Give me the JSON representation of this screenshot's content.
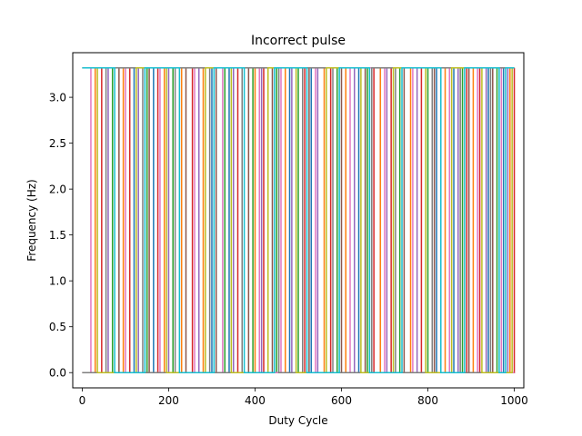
{
  "chart_data": {
    "type": "line",
    "title": "Incorrect pulse",
    "xlabel": "Duty Cycle",
    "ylabel": "Frequency (Hz)",
    "xlim": [
      -22,
      1022
    ],
    "ylim": [
      -0.166,
      3.486
    ],
    "xticks": [
      0,
      200,
      400,
      600,
      800,
      1000
    ],
    "xtick_labels": [
      "0",
      "200",
      "400",
      "600",
      "800",
      "1000"
    ],
    "yticks": [
      0.0,
      0.5,
      1.0,
      1.5,
      2.0,
      2.5,
      3.0
    ],
    "ytick_labels": [
      "0.0",
      "0.5",
      "1.0",
      "1.5",
      "2.0",
      "2.5",
      "3.0"
    ],
    "grid": false,
    "legend": "none",
    "low_level": 0.0,
    "high_level": 3.32,
    "series": [
      {
        "color": "#1f77b4",
        "transitions": [
          [
            0,
            1
          ],
          [
            120,
            0
          ],
          [
            165,
            1
          ],
          [
            300,
            0
          ],
          [
            340,
            1
          ],
          [
            480,
            0
          ],
          [
            530,
            1
          ],
          [
            640,
            0
          ],
          [
            690,
            1
          ],
          [
            820,
            0
          ],
          [
            860,
            1
          ],
          [
            940,
            0
          ],
          [
            975,
            1
          ]
        ]
      },
      {
        "color": "#ff7f0e",
        "transitions": [
          [
            0,
            0
          ],
          [
            30,
            1
          ],
          [
            95,
            0
          ],
          [
            190,
            1
          ],
          [
            230,
            0
          ],
          [
            280,
            1
          ],
          [
            400,
            0
          ],
          [
            470,
            1
          ],
          [
            560,
            0
          ],
          [
            610,
            1
          ],
          [
            690,
            0
          ],
          [
            760,
            1
          ],
          [
            840,
            0
          ],
          [
            905,
            1
          ],
          [
            990,
            0
          ]
        ]
      },
      {
        "color": "#2ca02c",
        "transitions": [
          [
            0,
            0
          ],
          [
            70,
            1
          ],
          [
            150,
            0
          ],
          [
            210,
            1
          ],
          [
            330,
            0
          ],
          [
            395,
            1
          ],
          [
            450,
            0
          ],
          [
            500,
            1
          ],
          [
            590,
            0
          ],
          [
            660,
            1
          ],
          [
            735,
            0
          ],
          [
            800,
            1
          ],
          [
            880,
            0
          ],
          [
            960,
            1
          ]
        ]
      },
      {
        "color": "#d62728",
        "transitions": [
          [
            0,
            1
          ],
          [
            45,
            0
          ],
          [
            110,
            1
          ],
          [
            175,
            0
          ],
          [
            255,
            1
          ],
          [
            360,
            0
          ],
          [
            420,
            1
          ],
          [
            515,
            0
          ],
          [
            575,
            1
          ],
          [
            675,
            0
          ],
          [
            715,
            1
          ],
          [
            785,
            0
          ],
          [
            890,
            1
          ],
          [
            920,
            0
          ],
          [
            1000,
            1
          ]
        ]
      },
      {
        "color": "#9467bd",
        "transitions": [
          [
            0,
            0
          ],
          [
            60,
            1
          ],
          [
            130,
            0
          ],
          [
            200,
            1
          ],
          [
            270,
            0
          ],
          [
            350,
            1
          ],
          [
            415,
            0
          ],
          [
            485,
            1
          ],
          [
            545,
            0
          ],
          [
            630,
            1
          ],
          [
            705,
            0
          ],
          [
            775,
            1
          ],
          [
            870,
            0
          ],
          [
            935,
            1
          ],
          [
            985,
            0
          ]
        ]
      },
      {
        "color": "#8c564b",
        "transitions": [
          [
            0,
            1
          ],
          [
            85,
            0
          ],
          [
            155,
            1
          ],
          [
            240,
            0
          ],
          [
            310,
            1
          ],
          [
            385,
            0
          ],
          [
            440,
            1
          ],
          [
            525,
            0
          ],
          [
            600,
            1
          ],
          [
            655,
            0
          ],
          [
            745,
            1
          ],
          [
            815,
            0
          ],
          [
            895,
            1
          ],
          [
            950,
            0
          ]
        ]
      },
      {
        "color": "#e377c2",
        "transitions": [
          [
            0,
            0
          ],
          [
            20,
            1
          ],
          [
            100,
            0
          ],
          [
            180,
            1
          ],
          [
            260,
            0
          ],
          [
            325,
            1
          ],
          [
            410,
            0
          ],
          [
            460,
            1
          ],
          [
            540,
            0
          ],
          [
            620,
            1
          ],
          [
            700,
            0
          ],
          [
            765,
            1
          ],
          [
            850,
            0
          ],
          [
            915,
            1
          ],
          [
            970,
            0
          ]
        ]
      },
      {
        "color": "#7f7f7f",
        "transitions": [
          [
            0,
            0
          ],
          [
            55,
            1
          ],
          [
            140,
            0
          ],
          [
            215,
            1
          ],
          [
            295,
            0
          ],
          [
            370,
            1
          ],
          [
            455,
            0
          ],
          [
            510,
            1
          ],
          [
            580,
            0
          ],
          [
            670,
            1
          ],
          [
            725,
            0
          ],
          [
            810,
            1
          ],
          [
            875,
            0
          ],
          [
            945,
            1
          ]
        ]
      },
      {
        "color": "#bcbd22",
        "transitions": [
          [
            0,
            1
          ],
          [
            35,
            0
          ],
          [
            125,
            1
          ],
          [
            195,
            0
          ],
          [
            285,
            1
          ],
          [
            345,
            0
          ],
          [
            430,
            1
          ],
          [
            495,
            0
          ],
          [
            565,
            1
          ],
          [
            645,
            0
          ],
          [
            720,
            1
          ],
          [
            795,
            0
          ],
          [
            855,
            1
          ],
          [
            925,
            0
          ],
          [
            995,
            1
          ]
        ]
      },
      {
        "color": "#17becf",
        "transitions": [
          [
            0,
            1
          ],
          [
            75,
            0
          ],
          [
            145,
            1
          ],
          [
            225,
            0
          ],
          [
            305,
            1
          ],
          [
            375,
            0
          ],
          [
            445,
            1
          ],
          [
            520,
            0
          ],
          [
            595,
            1
          ],
          [
            665,
            0
          ],
          [
            740,
            1
          ],
          [
            830,
            0
          ],
          [
            885,
            1
          ],
          [
            965,
            0
          ],
          [
            980,
            1
          ]
        ]
      }
    ]
  }
}
